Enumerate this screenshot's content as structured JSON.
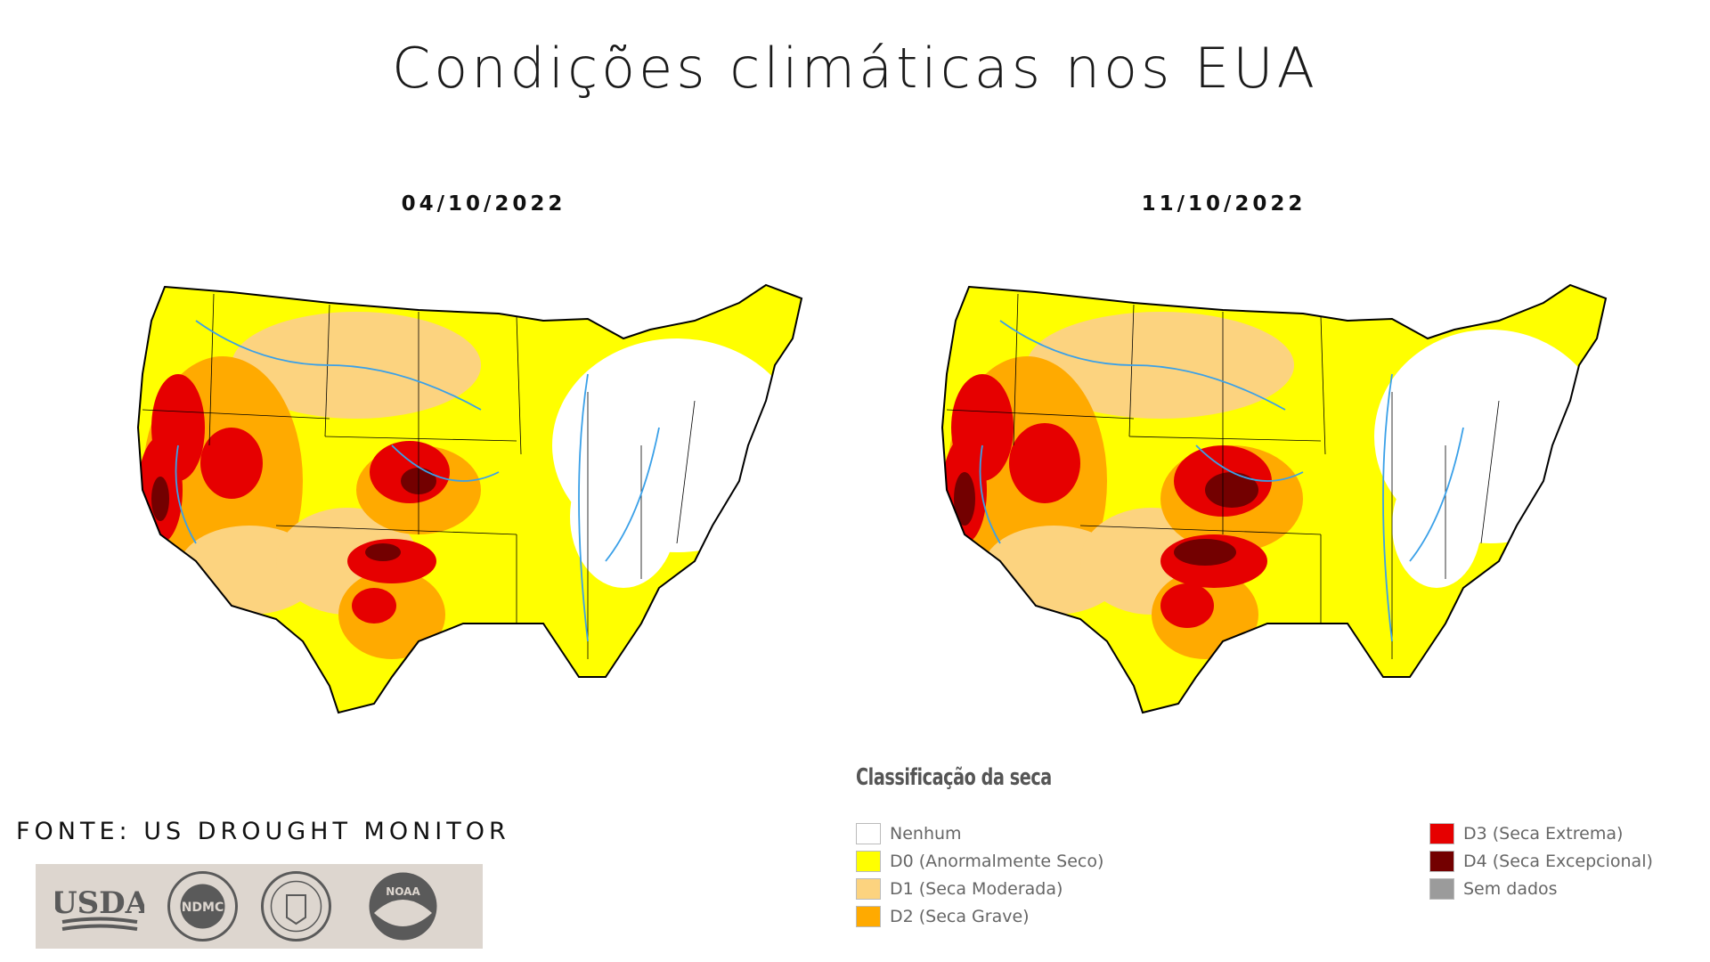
{
  "title": "Condições climáticas nos EUA",
  "maps": [
    {
      "date": "04/10/2022"
    },
    {
      "date": "11/10/2022"
    }
  ],
  "source": "FONTE: US DROUGHT MONITOR",
  "logos": [
    {
      "name": "usda-logo",
      "text": "USDA"
    },
    {
      "name": "ndmc-logo",
      "text": "NDMC"
    },
    {
      "name": "doc-seal-logo",
      "text": ""
    },
    {
      "name": "noaa-logo",
      "text": "NOAA"
    }
  ],
  "legend": {
    "title": "Classificação da seca",
    "items": [
      {
        "label": "Nenhum",
        "color": "#ffffff"
      },
      {
        "label": "D0 (Anormalmente Seco)",
        "color": "#ffff00"
      },
      {
        "label": "D1 (Seca Moderada)",
        "color": "#fcd37f"
      },
      {
        "label": "D2 (Seca Grave)",
        "color": "#ffaa00"
      },
      {
        "label": "D3 (Seca Extrema)",
        "color": "#e60000"
      },
      {
        "label": "D4 (Seca Excepcional)",
        "color": "#730000"
      },
      {
        "label": "Sem dados",
        "color": "#9b9b9b"
      }
    ]
  }
}
